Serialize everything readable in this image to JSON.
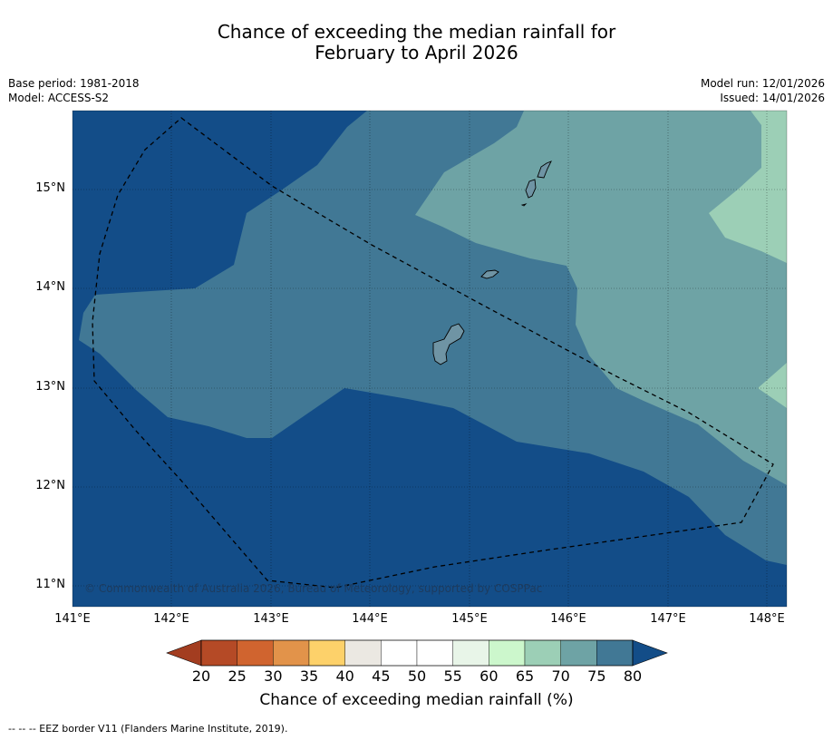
{
  "title_line1": "Chance of exceeding the median rainfall for",
  "title_line2": "February to April 2026",
  "meta": {
    "base_period": "Base period: 1981-2018",
    "model": "Model: ACCESS-S2",
    "model_run": "Model run: 12/01/2026",
    "issued": "Issued: 14/01/2026"
  },
  "map": {
    "lon_labels": [
      "141°E",
      "142°E",
      "143°E",
      "144°E",
      "145°E",
      "146°E",
      "147°E",
      "148°E"
    ],
    "lat_labels": [
      "15°N",
      "14°N",
      "13°N",
      "12°N",
      "11°N"
    ],
    "copyright": "© Commonwealth of Australia 2026, Bureau of Meteorology, supported by COSPPac"
  },
  "colorbar": {
    "ticks": [
      "20",
      "25",
      "30",
      "35",
      "40",
      "45",
      "50",
      "55",
      "60",
      "65",
      "70",
      "75",
      "80"
    ],
    "colors": [
      "#b54a26",
      "#d0642f",
      "#e2934a",
      "#fdd16a",
      "#ebe8e2",
      "#ffffff",
      "#ffffff",
      "#e8f5e8",
      "#ccf7cc",
      "#9ccfb6",
      "#6ea3a5",
      "#417895"
    ],
    "under_color": "#a33d20",
    "over_color": "#134d88",
    "label": "Chance of exceeding median rainfall (%)"
  },
  "legend_text": "--  --  -- EEZ border V11 (Flanders Marine Institute, 2019)."
}
